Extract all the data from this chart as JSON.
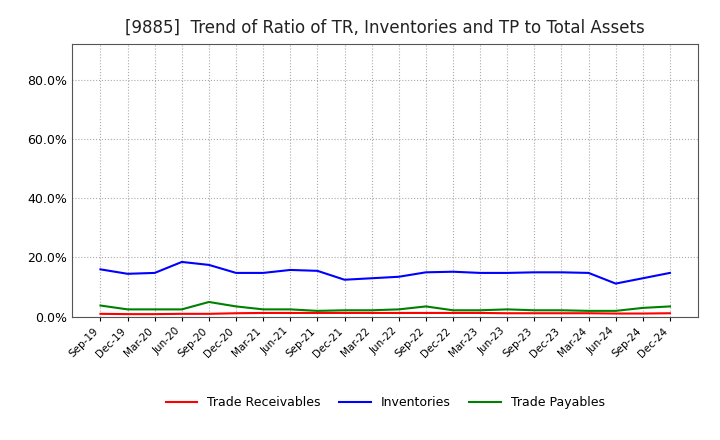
{
  "title": "[9885]  Trend of Ratio of TR, Inventories and TP to Total Assets",
  "title_fontsize": 12,
  "title_fontweight": "normal",
  "background_color": "#ffffff",
  "plot_bg_color": "#ffffff",
  "grid_color": "#aaaaaa",
  "grid_style": "dotted",
  "ylim": [
    0,
    0.92
  ],
  "yticks": [
    0.0,
    0.2,
    0.4,
    0.6,
    0.8
  ],
  "x_labels": [
    "Sep-19",
    "Dec-19",
    "Mar-20",
    "Jun-20",
    "Sep-20",
    "Dec-20",
    "Mar-21",
    "Jun-21",
    "Sep-21",
    "Dec-21",
    "Mar-22",
    "Jun-22",
    "Sep-22",
    "Dec-22",
    "Mar-23",
    "Jun-23",
    "Sep-23",
    "Dec-23",
    "Mar-24",
    "Jun-24",
    "Sep-24",
    "Dec-24"
  ],
  "trade_receivables": [
    0.01,
    0.009,
    0.009,
    0.01,
    0.01,
    0.012,
    0.013,
    0.013,
    0.013,
    0.013,
    0.013,
    0.013,
    0.013,
    0.013,
    0.013,
    0.012,
    0.012,
    0.012,
    0.012,
    0.011,
    0.011,
    0.012
  ],
  "inventories": [
    0.16,
    0.145,
    0.148,
    0.185,
    0.175,
    0.148,
    0.148,
    0.158,
    0.155,
    0.125,
    0.13,
    0.135,
    0.15,
    0.152,
    0.148,
    0.148,
    0.15,
    0.15,
    0.148,
    0.112,
    0.13,
    0.148
  ],
  "trade_payables": [
    0.038,
    0.025,
    0.025,
    0.025,
    0.05,
    0.035,
    0.025,
    0.025,
    0.02,
    0.022,
    0.022,
    0.025,
    0.035,
    0.022,
    0.022,
    0.025,
    0.022,
    0.022,
    0.02,
    0.02,
    0.03,
    0.035
  ],
  "tr_color": "#ff0000",
  "inv_color": "#0000ff",
  "tp_color": "#008000",
  "line_width": 1.5,
  "legend_labels": [
    "Trade Receivables",
    "Inventories",
    "Trade Payables"
  ]
}
